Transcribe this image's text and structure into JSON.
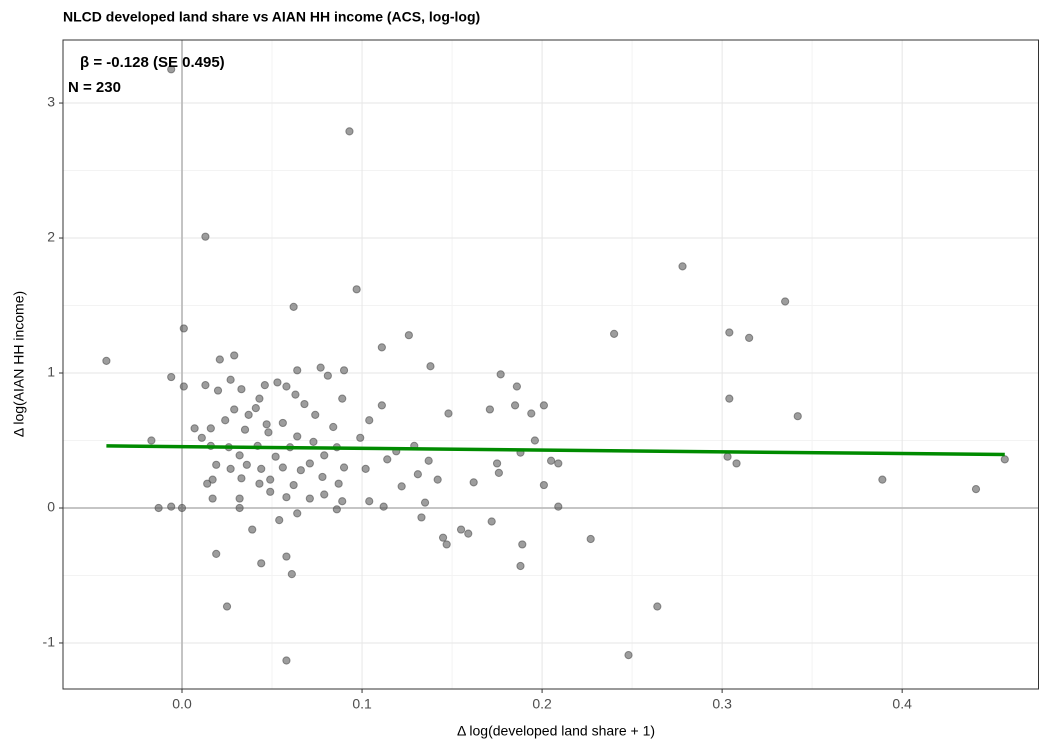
{
  "chart_data": {
    "type": "scatter",
    "title": "NLCD developed land share vs AIAN HH income (ACS, log-log)",
    "x_label": "Δ log(developed land share + 1)",
    "y_label": "Δ log(AIAN HH income)",
    "annotations": [
      "β = -0.128 (SE 0.495)",
      "N = 230"
    ],
    "xlim": [
      -0.0661,
      0.476
    ],
    "ylim": [
      -1.341,
      3.467
    ],
    "xticks": [
      {
        "value": 0,
        "label": "0.0"
      },
      0.1,
      0.2,
      0.3,
      0.4
    ],
    "yticks": [
      -1,
      0,
      1,
      2,
      3
    ],
    "grid": true,
    "reference_lines": {
      "x": 0,
      "y": 0
    },
    "color": "#4d4d4d",
    "x": [
      -0.042,
      -0.006,
      0.093,
      0.013,
      0.278,
      0.335,
      0.097,
      0.062,
      0.304,
      0.24,
      0.315,
      0.126,
      0.001,
      0.111,
      0.029,
      0.021,
      0.138,
      0.077,
      0.09,
      0.064,
      -0.006,
      0.177,
      0.001,
      0.013,
      0.027,
      0.186,
      0.304,
      0.081,
      0.046,
      0.053,
      0.058,
      0.02,
      0.033,
      0.043,
      0.063,
      0.089,
      0.041,
      0.111,
      0.185,
      0.201,
      0.171,
      0.029,
      0.037,
      0.074,
      0.068,
      0.104,
      0.148,
      0.194,
      0.342,
      0.024,
      0.047,
      0.056,
      0.084,
      0.099,
      0.007,
      0.016,
      0.035,
      0.064,
      0.011,
      0.048,
      0.073,
      0.196,
      0.016,
      0.026,
      0.042,
      0.06,
      0.086,
      0.119,
      0.129,
      0.188,
      0.032,
      0.052,
      0.079,
      0.303,
      0.114,
      0.137,
      0.175,
      0.205,
      0.457,
      0.308,
      0.209,
      0.019,
      0.036,
      0.056,
      0.071,
      0.09,
      0.027,
      0.044,
      0.066,
      0.102,
      0.131,
      0.176,
      0.017,
      0.033,
      0.049,
      0.078,
      0.142,
      0.389,
      0.014,
      0.043,
      0.062,
      0.087,
      0.122,
      0.162,
      0.201,
      0.049,
      0.079,
      0.441,
      0.017,
      0.032,
      0.058,
      0.071,
      0.089,
      0.104,
      0.135,
      -0.013,
      -0.006,
      0.0,
      0.032,
      0.086,
      0.112,
      0.209,
      -0.017,
      0.064,
      0.054,
      0.133,
      0.172,
      0.039,
      0.155,
      0.159,
      0.145,
      0.147,
      0.227,
      0.189,
      0.019,
      0.058,
      0.044,
      0.061,
      0.188,
      0.264,
      0.025,
      0.248,
      0.058
    ],
    "values": [
      1.09,
      3.25,
      2.79,
      2.01,
      1.79,
      1.53,
      1.62,
      1.49,
      1.3,
      1.29,
      1.26,
      1.28,
      1.33,
      1.19,
      1.13,
      1.1,
      1.05,
      1.04,
      1.02,
      1.02,
      0.97,
      0.99,
      0.9,
      0.91,
      0.95,
      0.9,
      0.81,
      0.98,
      0.91,
      0.93,
      0.9,
      0.87,
      0.88,
      0.81,
      0.84,
      0.81,
      0.74,
      0.76,
      0.76,
      0.76,
      0.73,
      0.73,
      0.69,
      0.69,
      0.77,
      0.65,
      0.7,
      0.7,
      0.68,
      0.65,
      0.62,
      0.63,
      0.6,
      0.52,
      0.59,
      0.59,
      0.58,
      0.53,
      0.52,
      0.56,
      0.49,
      0.5,
      0.46,
      0.45,
      0.46,
      0.45,
      0.45,
      0.42,
      0.46,
      0.41,
      0.39,
      0.38,
      0.39,
      0.38,
      0.36,
      0.35,
      0.33,
      0.35,
      0.36,
      0.33,
      0.33,
      0.32,
      0.32,
      0.3,
      0.33,
      0.3,
      0.29,
      0.29,
      0.28,
      0.29,
      0.25,
      0.26,
      0.21,
      0.22,
      0.21,
      0.23,
      0.21,
      0.21,
      0.18,
      0.18,
      0.17,
      0.18,
      0.16,
      0.19,
      0.17,
      0.12,
      0.1,
      0.14,
      0.07,
      0.07,
      0.08,
      0.07,
      0.05,
      0.05,
      0.04,
      0.0,
      0.01,
      0.0,
      0.0,
      -0.01,
      0.01,
      0.01,
      0.5,
      -0.04,
      -0.09,
      -0.07,
      -0.1,
      -0.16,
      -0.16,
      -0.19,
      -0.22,
      -0.27,
      -0.23,
      -0.27,
      -0.34,
      -0.36,
      -0.41,
      -0.49,
      -0.43,
      -0.73,
      -0.73,
      -1.09,
      -1.13
    ],
    "fit": {
      "type": "line",
      "color": "#008b00",
      "x": [
        -0.042,
        0.457
      ],
      "values": [
        0.46,
        0.396
      ]
    }
  }
}
